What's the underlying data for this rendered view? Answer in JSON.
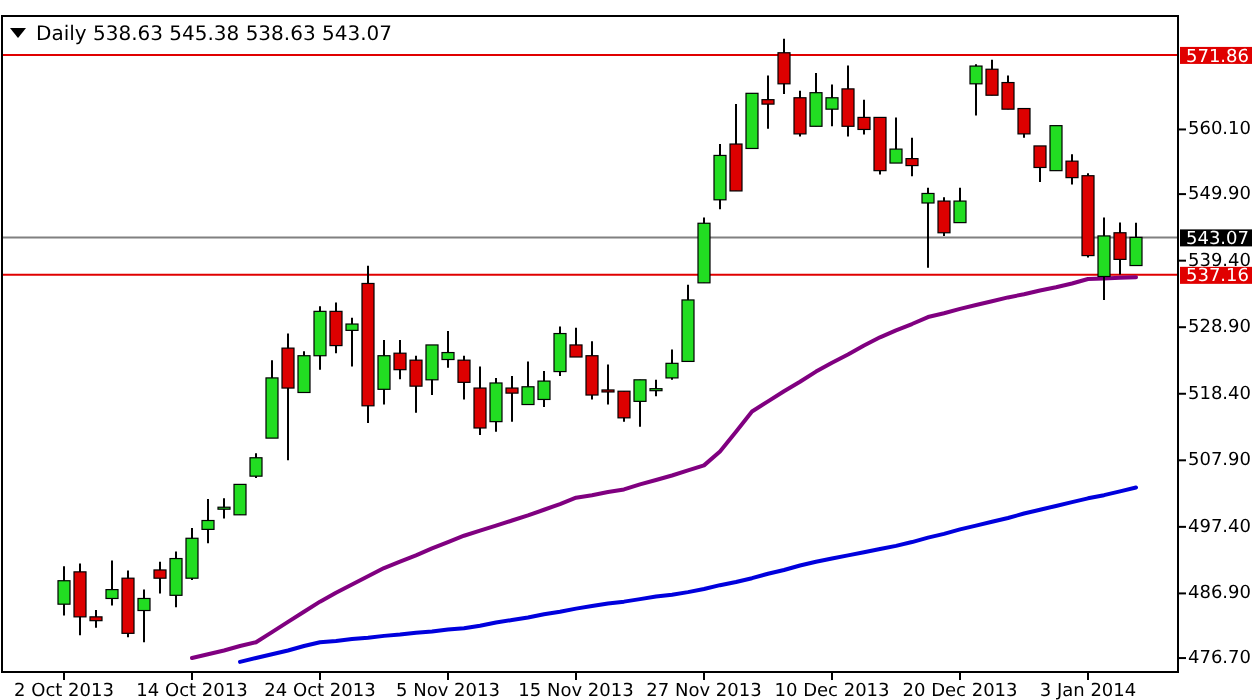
{
  "chart_data": {
    "type": "candlestick",
    "title": "Daily  538.63 545.38 538.63 543.07",
    "categories": [
      "2 Oct 2013",
      null,
      null,
      null,
      null,
      null,
      null,
      null,
      "14 Oct 2013",
      null,
      null,
      null,
      null,
      null,
      null,
      null,
      "24 Oct 2013",
      null,
      null,
      null,
      null,
      null,
      null,
      null,
      "5 Nov 2013",
      null,
      null,
      null,
      null,
      null,
      null,
      null,
      "15 Nov 2013",
      null,
      null,
      null,
      null,
      null,
      null,
      null,
      "27 Nov 2013",
      null,
      null,
      null,
      null,
      null,
      null,
      null,
      "10 Dec 2013",
      null,
      null,
      null,
      null,
      null,
      null,
      null,
      "20 Dec 2013",
      null,
      null,
      null,
      null,
      null,
      null,
      null,
      "3 Jan 2014",
      null,
      null,
      null
    ],
    "ohlc": [
      [
        485.2,
        491.2,
        483.4,
        488.9
      ],
      [
        490.3,
        491.6,
        480.3,
        483.2
      ],
      [
        483.2,
        484.3,
        481.5,
        482.6
      ],
      [
        486.1,
        492.1,
        485.0,
        487.5
      ],
      [
        489.3,
        490.5,
        480.0,
        480.6
      ],
      [
        484.2,
        487.5,
        479.2,
        486.1
      ],
      [
        490.6,
        491.9,
        486.9,
        489.3
      ],
      [
        486.6,
        493.5,
        484.7,
        492.4
      ],
      [
        489.3,
        497.2,
        489.0,
        495.6
      ],
      [
        497.0,
        501.8,
        494.8,
        498.4
      ],
      [
        500.3,
        501.9,
        498.7,
        500.5
      ],
      [
        499.3,
        504.1,
        499.3,
        504.1
      ],
      [
        505.4,
        509.0,
        505.1,
        508.3
      ],
      [
        511.4,
        523.7,
        511.4,
        520.9
      ],
      [
        525.6,
        527.9,
        507.9,
        519.3
      ],
      [
        518.6,
        525.1,
        518.6,
        524.4
      ],
      [
        524.4,
        532.2,
        522.2,
        531.4
      ],
      [
        531.4,
        532.8,
        524.8,
        526.0
      ],
      [
        528.4,
        530.4,
        522.7,
        529.4
      ],
      [
        535.8,
        538.6,
        513.8,
        516.5
      ],
      [
        519.1,
        526.9,
        516.7,
        524.4
      ],
      [
        524.8,
        526.9,
        520.7,
        522.2
      ],
      [
        523.7,
        524.4,
        515.4,
        519.6
      ],
      [
        520.6,
        526.1,
        518.2,
        526.1
      ],
      [
        523.8,
        528.3,
        522.5,
        524.9
      ],
      [
        523.7,
        524.4,
        517.5,
        520.2
      ],
      [
        519.3,
        522.7,
        511.9,
        513.0
      ],
      [
        514.0,
        520.9,
        512.4,
        520.1
      ],
      [
        519.3,
        521.2,
        514.0,
        518.5
      ],
      [
        516.7,
        523.5,
        516.7,
        519.5
      ],
      [
        517.5,
        522.0,
        516.3,
        520.4
      ],
      [
        521.9,
        529.0,
        521.2,
        527.9
      ],
      [
        526.1,
        528.8,
        524.2,
        524.2
      ],
      [
        524.4,
        526.7,
        517.5,
        518.2
      ],
      [
        519.0,
        523.0,
        516.7,
        518.8
      ],
      [
        518.8,
        518.8,
        514.0,
        514.6
      ],
      [
        517.2,
        520.6,
        513.2,
        520.6
      ],
      [
        519.0,
        520.6,
        518.0,
        519.2
      ],
      [
        520.9,
        525.4,
        520.6,
        523.2
      ],
      [
        523.5,
        535.6,
        523.5,
        533.2
      ],
      [
        535.9,
        546.2,
        535.9,
        545.3
      ],
      [
        549.0,
        557.8,
        547.5,
        556.0
      ],
      [
        557.8,
        564.1,
        550.4,
        550.4
      ],
      [
        557.1,
        565.8,
        557.1,
        565.8
      ],
      [
        564.8,
        568.6,
        560.2,
        564.1
      ],
      [
        572.2,
        574.4,
        565.7,
        567.3
      ],
      [
        565.1,
        566.2,
        559.0,
        559.4
      ],
      [
        560.6,
        569.0,
        560.6,
        565.9
      ],
      [
        563.3,
        567.2,
        560.6,
        565.1
      ],
      [
        566.5,
        570.2,
        559.0,
        560.6
      ],
      [
        562.0,
        564.8,
        559.3,
        560.1
      ],
      [
        562.0,
        562.0,
        553.0,
        553.6
      ],
      [
        554.8,
        562.0,
        554.8,
        557.0
      ],
      [
        555.5,
        558.8,
        552.7,
        554.4
      ],
      [
        548.5,
        550.9,
        538.3,
        550.0
      ],
      [
        548.8,
        549.4,
        543.3,
        543.8
      ],
      [
        545.4,
        550.9,
        545.4,
        548.8
      ],
      [
        567.3,
        570.4,
        562.3,
        570.1
      ],
      [
        569.6,
        571.1,
        565.5,
        565.5
      ],
      [
        567.5,
        568.6,
        563.3,
        563.3
      ],
      [
        563.4,
        563.4,
        558.8,
        559.4
      ],
      [
        557.5,
        557.5,
        551.8,
        554.1
      ],
      [
        553.6,
        560.7,
        553.6,
        560.7
      ],
      [
        555.1,
        556.2,
        551.4,
        552.5
      ],
      [
        552.8,
        553.2,
        539.9,
        540.2
      ],
      [
        536.9,
        546.2,
        533.2,
        543.3
      ],
      [
        543.8,
        545.4,
        537.2,
        539.6
      ],
      [
        538.63,
        545.38,
        538.63,
        543.07
      ]
    ],
    "series": [
      {
        "type": "line",
        "color": "#800080",
        "values": [
          null,
          null,
          null,
          null,
          null,
          null,
          null,
          null,
          476.7,
          477.3,
          477.9,
          478.6,
          479.2,
          480.8,
          482.4,
          484.0,
          485.6,
          487.0,
          488.3,
          489.6,
          490.9,
          491.9,
          492.9,
          494.0,
          495.0,
          496.0,
          496.8,
          497.6,
          498.4,
          499.2,
          500.1,
          501.0,
          502.0,
          502.4,
          502.9,
          503.3,
          504.1,
          504.8,
          505.5,
          506.3,
          507.1,
          509.3,
          512.4,
          515.6,
          517.2,
          518.8,
          520.3,
          521.9,
          523.3,
          524.6,
          526.0,
          527.3,
          528.4,
          529.4,
          530.5,
          531.1,
          531.8,
          532.4,
          533.0,
          533.6,
          534.1,
          534.7,
          535.2,
          535.8,
          536.5,
          536.6,
          536.7,
          536.8
        ]
      },
      {
        "type": "line",
        "color": "#0000dd",
        "values": [
          null,
          null,
          null,
          null,
          null,
          null,
          null,
          null,
          null,
          null,
          null,
          476.1,
          476.7,
          477.3,
          477.9,
          478.6,
          479.2,
          479.4,
          479.7,
          479.9,
          480.2,
          480.4,
          480.7,
          480.9,
          481.2,
          481.4,
          481.8,
          482.3,
          482.7,
          483.1,
          483.6,
          484.0,
          484.5,
          484.9,
          485.3,
          485.6,
          486.0,
          486.4,
          486.7,
          487.1,
          487.6,
          488.2,
          488.7,
          489.3,
          490.0,
          490.6,
          491.3,
          491.9,
          492.4,
          492.9,
          493.4,
          493.9,
          494.4,
          495.0,
          495.7,
          496.3,
          497.0,
          497.6,
          498.2,
          498.8,
          499.5,
          500.1,
          500.7,
          501.3,
          501.9,
          502.4,
          503.0,
          503.6
        ]
      }
    ],
    "ylim": [
      474.5,
      578
    ],
    "yticks": [
      {
        "value": 476.7,
        "label": "476.70"
      },
      {
        "value": 486.9,
        "label": "486.90"
      },
      {
        "value": 497.4,
        "label": "497.40"
      },
      {
        "value": 507.9,
        "label": "507.90"
      },
      {
        "value": 518.4,
        "label": "518.40"
      },
      {
        "value": 528.9,
        "label": "528.90"
      },
      {
        "value": 539.4,
        "label": "539.40"
      },
      {
        "value": 549.9,
        "label": "549.90"
      },
      {
        "value": 560.1,
        "label": "560.10"
      }
    ],
    "ref_lines": [
      {
        "axis": "y",
        "value": 571.86,
        "label": "571.86",
        "color": "#e00000"
      },
      {
        "axis": "y",
        "value": 537.16,
        "label": "537.16",
        "color": "#e00000"
      },
      {
        "axis": "y",
        "value": 543.07,
        "label": "543.07",
        "color": "#808080"
      }
    ],
    "grid": false
  }
}
